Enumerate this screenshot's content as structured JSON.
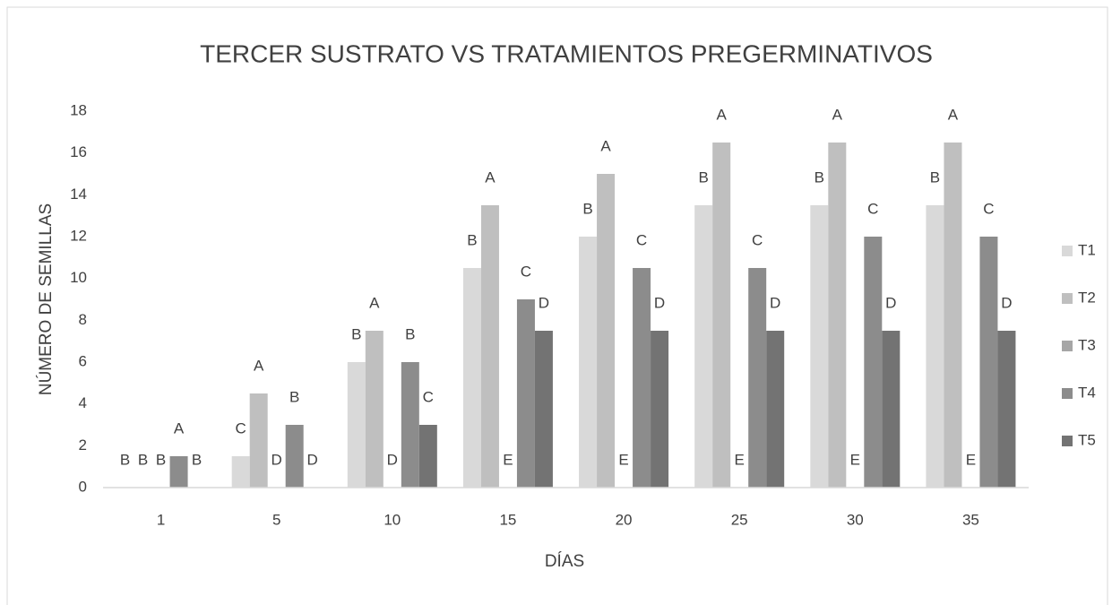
{
  "chart_data": {
    "type": "bar",
    "title": "TERCER SUSTRATO VS TRATAMIENTOS PREGERMINATIVOS",
    "x_label": "DÍAS",
    "y_label": "NÚMERO DE SEMILLAS",
    "categories": [
      "1",
      "5",
      "10",
      "15",
      "20",
      "25",
      "30",
      "35"
    ],
    "series": [
      {
        "name": "T1",
        "color": "#d9d9d9",
        "values": [
          0,
          1.5,
          6,
          10.5,
          12,
          13.5,
          13.5,
          13.5
        ],
        "annotations": [
          "B",
          "C",
          "B",
          "B",
          "B",
          "B",
          "B",
          "B"
        ]
      },
      {
        "name": "T2",
        "color": "#bfbfbf",
        "values": [
          0,
          4.5,
          7.5,
          13.5,
          15,
          16.5,
          16.5,
          16.5
        ],
        "annotations": [
          "B",
          "A",
          "A",
          "A",
          "A",
          "A",
          "A",
          "A"
        ]
      },
      {
        "name": "T3",
        "color": "#a6a6a6",
        "values": [
          0,
          0,
          0,
          0,
          0,
          0,
          0,
          0
        ],
        "annotations": [
          "B",
          "D",
          "D",
          "E",
          "E",
          "E",
          "E",
          "E"
        ]
      },
      {
        "name": "T4",
        "color": "#8c8c8c",
        "values": [
          1.5,
          3,
          6,
          9,
          10.5,
          10.5,
          12,
          12
        ],
        "annotations": [
          "A",
          "B",
          "B",
          "C",
          "C",
          "C",
          "C",
          "C"
        ]
      },
      {
        "name": "T5",
        "color": "#737373",
        "values": [
          0,
          0,
          3,
          7.5,
          7.5,
          7.5,
          7.5,
          7.5
        ],
        "annotations": [
          "B",
          "D",
          "C",
          "D",
          "D",
          "D",
          "D",
          "D"
        ]
      }
    ],
    "ylim": [
      0,
      18
    ],
    "yticks": [
      0,
      2,
      4,
      6,
      8,
      10,
      12,
      14,
      16,
      18
    ],
    "grid": false,
    "legend": "right"
  }
}
